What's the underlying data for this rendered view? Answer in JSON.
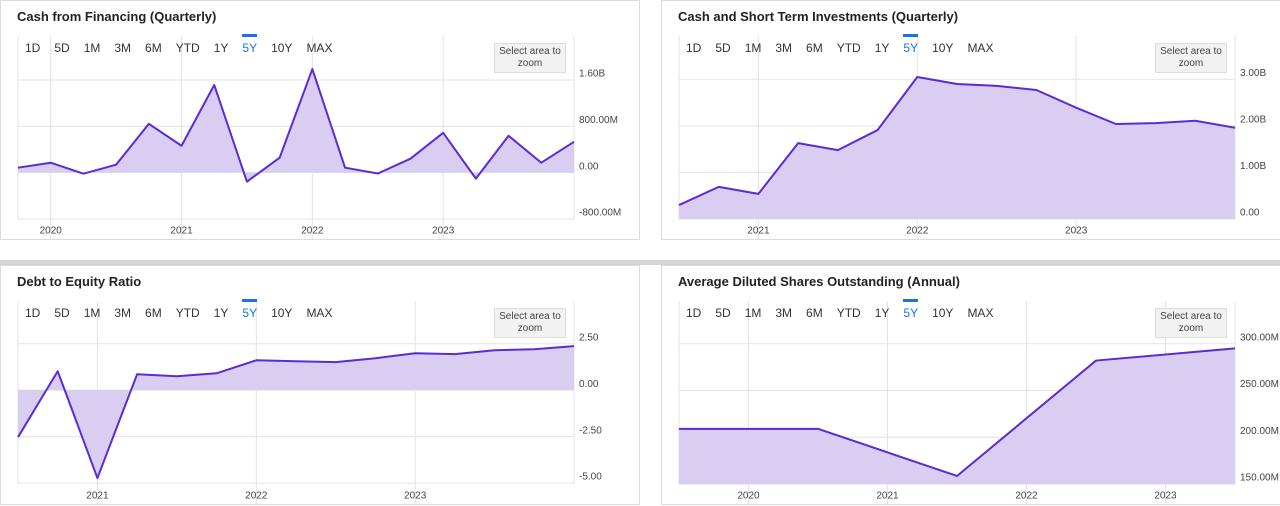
{
  "range_buttons": [
    "1D",
    "5D",
    "1M",
    "3M",
    "6M",
    "YTD",
    "1Y",
    "5Y",
    "10Y",
    "MAX"
  ],
  "selected_range": "5Y",
  "zoom_button": "Select area to zoom",
  "chart_data": [
    {
      "type": "area",
      "title": "Cash from Financing (Quarterly)",
      "x": [
        2019.75,
        2020,
        2020.25,
        2020.5,
        2020.75,
        2021,
        2021.25,
        2021.5,
        2021.75,
        2022,
        2022.25,
        2022.5,
        2022.75,
        2023,
        2023.25,
        2023.5,
        2023.75,
        2024
      ],
      "values": [
        86,
        172,
        -17,
        138,
        843,
        465,
        1514,
        -155,
        258,
        1789,
        86,
        -15,
        241,
        688,
        -103,
        637,
        172,
        533
      ],
      "color": "#5b2bd4",
      "fill": "#d9cef2",
      "xlim": [
        2019.75,
        2024
      ],
      "xticks": [
        2020,
        2021,
        2022,
        2023
      ],
      "ylim": [
        -800,
        2360
      ],
      "yticks": [
        {
          "value": -800,
          "label": "-800.00M"
        },
        {
          "value": 0,
          "label": "0.00"
        },
        {
          "value": 800,
          "label": "800.00M"
        },
        {
          "value": 1600,
          "label": "1.60B"
        }
      ],
      "grid": true
    },
    {
      "type": "area",
      "title": "Cash and Short Term Investments (Quarterly)",
      "x": [
        2020.5,
        2020.75,
        2021,
        2021.25,
        2021.5,
        2021.75,
        2022,
        2022.25,
        2022.5,
        2022.75,
        2023,
        2023.25,
        2023.5,
        2023.75,
        2024
      ],
      "values": [
        0.3,
        0.69,
        0.54,
        1.63,
        1.48,
        1.91,
        3.05,
        2.9,
        2.86,
        2.77,
        2.39,
        2.04,
        2.06,
        2.11,
        1.96
      ],
      "color": "#5b2bd4",
      "fill": "#d9cef2",
      "xlim": [
        2020.5,
        2024
      ],
      "xticks": [
        2021,
        2022,
        2023
      ],
      "ylim": [
        0,
        3.93
      ],
      "yticks": [
        {
          "value": 0,
          "label": "0.00"
        },
        {
          "value": 1,
          "label": "1.00B"
        },
        {
          "value": 2,
          "label": "2.00B"
        },
        {
          "value": 3,
          "label": "3.00B"
        }
      ],
      "grid": true
    },
    {
      "type": "area",
      "title": "Debt to Equity Ratio",
      "x": [
        2020.5,
        2020.75,
        2021,
        2021.25,
        2021.5,
        2021.75,
        2022,
        2022.25,
        2022.5,
        2022.75,
        2023,
        2023.25,
        2023.5,
        2023.75,
        2024
      ],
      "values": [
        -2.53,
        1.02,
        -4.73,
        0.86,
        0.75,
        0.91,
        1.61,
        1.56,
        1.51,
        1.72,
        1.99,
        1.94,
        2.15,
        2.2,
        2.37
      ],
      "color": "#5b2bd4",
      "fill": "#d9cef2",
      "xlim": [
        2020.5,
        2024
      ],
      "xticks": [
        2021,
        2022,
        2023
      ],
      "ylim": [
        -5.05,
        4.8
      ],
      "yticks": [
        {
          "value": -5,
          "label": "-5.00"
        },
        {
          "value": -2.5,
          "label": "-2.50"
        },
        {
          "value": 0,
          "label": "0.00"
        },
        {
          "value": 2.5,
          "label": "2.50"
        }
      ],
      "grid": true
    },
    {
      "type": "area",
      "title": "Average Diluted Shares Outstanding (Annual)",
      "x": [
        2019.5,
        2020.5,
        2021.5,
        2022.5,
        2023.5
      ],
      "values": [
        209,
        209,
        158.6,
        282,
        295
      ],
      "color": "#5b2bd4",
      "fill": "#d9cef2",
      "xlim": [
        2019.5,
        2023.5
      ],
      "xticks": [
        2020,
        2021,
        2022,
        2023
      ],
      "ylim": [
        150,
        345.7
      ],
      "yticks": [
        {
          "value": 150,
          "label": "150.00M"
        },
        {
          "value": 200,
          "label": "200.00M"
        },
        {
          "value": 250,
          "label": "250.00M"
        },
        {
          "value": 300,
          "label": "300.00M"
        }
      ],
      "grid": true
    }
  ]
}
